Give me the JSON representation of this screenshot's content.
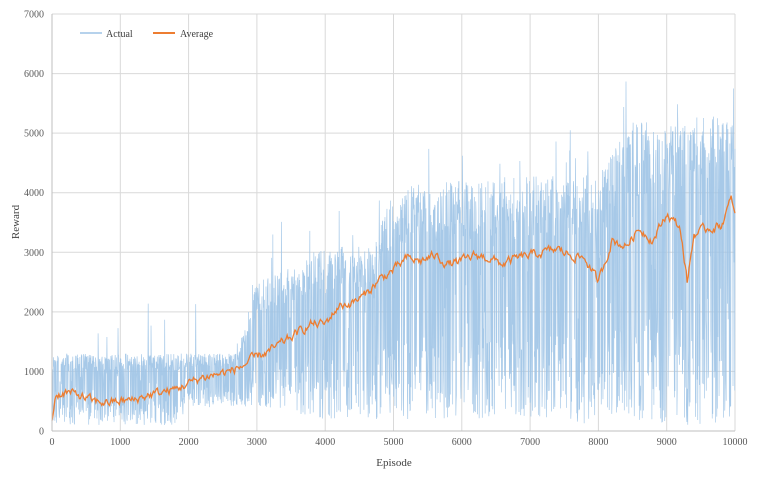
{
  "chart_data": {
    "type": "line",
    "xlabel": "Episode",
    "ylabel": "Reward",
    "xlim": [
      0,
      10000
    ],
    "ylim": [
      0,
      7000
    ],
    "x_ticks": [
      "0",
      "1000",
      "2000",
      "3000",
      "4000",
      "5000",
      "6000",
      "7000",
      "8000",
      "9000",
      "10000"
    ],
    "y_ticks": [
      "0",
      "1000",
      "2000",
      "3000",
      "4000",
      "5000",
      "6000",
      "7000"
    ],
    "grid": true,
    "legend_position": "top-left",
    "series": [
      {
        "name": "Actual",
        "color": "#9dc3e6",
        "style": "dense-noisy",
        "x": [
          0,
          1000,
          1800,
          2000,
          2700,
          3000,
          4000,
          4700,
          5000,
          6000,
          7000,
          8000,
          8500,
          9000,
          9500,
          10000
        ],
        "lower": [
          100,
          100,
          100,
          400,
          400,
          400,
          200,
          200,
          200,
          200,
          200,
          100,
          100,
          100,
          100,
          100
        ],
        "upper": [
          1300,
          1300,
          1300,
          1300,
          1300,
          2500,
          3100,
          3100,
          4100,
          4200,
          4300,
          4300,
          5200,
          5200,
          5300,
          5300
        ],
        "peak": 6250
      },
      {
        "name": "Average",
        "color": "#ed7d31",
        "style": "line",
        "x": [
          0,
          50,
          200,
          400,
          600,
          800,
          1000,
          1200,
          1400,
          1600,
          1800,
          2000,
          2200,
          2400,
          2600,
          2800,
          3000,
          3200,
          3400,
          3600,
          3800,
          4000,
          4200,
          4400,
          4600,
          4800,
          5000,
          5200,
          5400,
          5600,
          5800,
          6000,
          6200,
          6400,
          6600,
          6800,
          7000,
          7200,
          7400,
          7600,
          7800,
          8000,
          8200,
          8400,
          8600,
          8800,
          9000,
          9200,
          9300,
          9400,
          9600,
          9800,
          9950,
          10000
        ],
        "values": [
          200,
          600,
          650,
          600,
          500,
          480,
          500,
          520,
          600,
          650,
          700,
          800,
          900,
          950,
          1000,
          1100,
          1250,
          1350,
          1500,
          1650,
          1800,
          1800,
          2100,
          2150,
          2300,
          2550,
          2700,
          2900,
          2850,
          2950,
          2800,
          2850,
          2950,
          2900,
          2800,
          2900,
          2950,
          3000,
          3050,
          2950,
          2900,
          2500,
          3200,
          3100,
          3400,
          3200,
          3650,
          3400,
          2500,
          3300,
          3400,
          3450,
          3900,
          3600
        ]
      }
    ]
  }
}
